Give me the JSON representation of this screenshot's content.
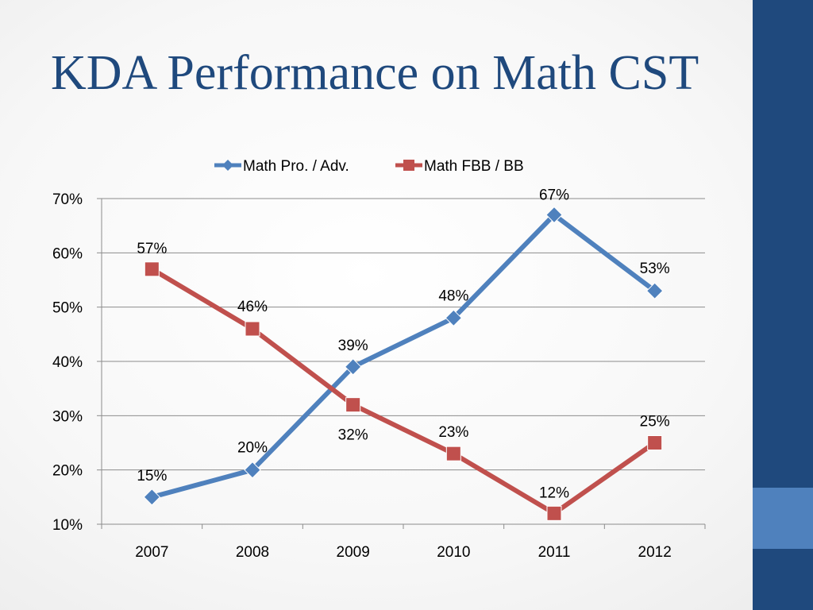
{
  "slide": {
    "title": "KDA Performance on Math CST",
    "colors": {
      "title": "#1f497d",
      "band": "#1f497d",
      "accent": "#4f81bd"
    }
  },
  "chart_data": {
    "type": "line",
    "title": "",
    "xlabel": "",
    "ylabel": "",
    "categories": [
      "2007",
      "2008",
      "2009",
      "2010",
      "2011",
      "2012"
    ],
    "y_ticks": [
      "10%",
      "20%",
      "30%",
      "40%",
      "50%",
      "60%",
      "70%"
    ],
    "ylim": [
      10,
      70
    ],
    "grid": true,
    "legend_position": "top",
    "series": [
      {
        "name": "Math Pro. / Adv.",
        "color": "#4f81bd",
        "marker": "diamond",
        "values": [
          15,
          20,
          39,
          48,
          67,
          53
        ],
        "labels": [
          "15%",
          "20%",
          "39%",
          "48%",
          "67%",
          "53%"
        ]
      },
      {
        "name": "Math FBB / BB",
        "color": "#c0504d",
        "marker": "square",
        "values": [
          57,
          46,
          32,
          23,
          12,
          25
        ],
        "labels": [
          "57%",
          "46%",
          "32%",
          "23%",
          "12%",
          "25%"
        ]
      }
    ]
  }
}
